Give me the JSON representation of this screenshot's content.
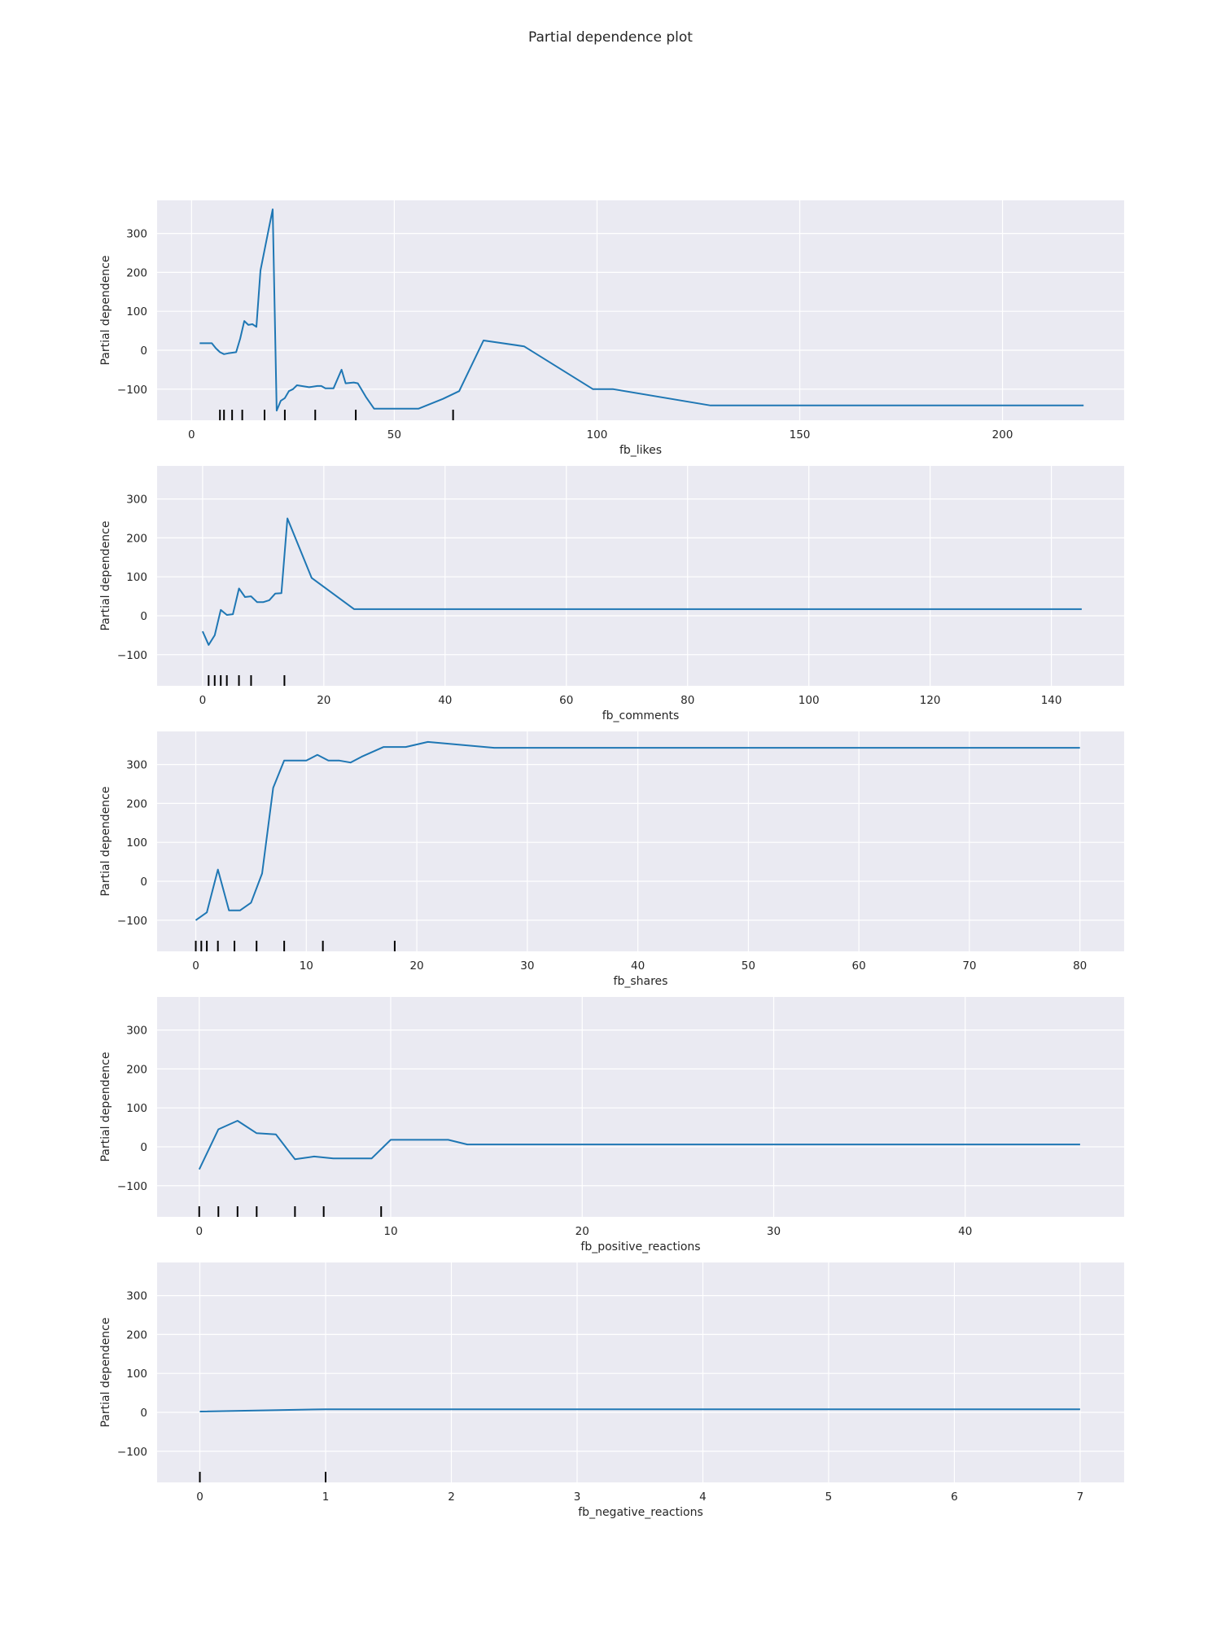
{
  "title": "Partial dependence plot",
  "colors": {
    "line": "#1f77b4",
    "panel_bg": "#eaeaf2",
    "grid": "#ffffff",
    "rug": "#000000",
    "text": "#262626"
  },
  "chart_data": [
    {
      "type": "line",
      "xlabel": "fb_likes",
      "ylabel": "Partial dependence",
      "xlim": [
        -8.5,
        230
      ],
      "ylim": [
        -180,
        385
      ],
      "xticks": [
        0,
        50,
        100,
        150,
        200
      ],
      "yticks": [
        -100,
        0,
        100,
        200,
        300
      ],
      "grid": true,
      "series": [
        {
          "x": [
            2,
            5,
            6,
            7,
            8,
            9,
            11,
            12,
            13,
            14,
            15,
            16,
            17,
            19,
            20,
            21,
            22,
            23,
            24,
            25,
            26,
            29,
            31,
            32,
            33,
            35,
            37,
            38,
            40,
            41,
            43,
            45,
            56,
            62,
            66,
            72,
            82,
            99,
            104,
            128,
            220
          ],
          "y": [
            18,
            18,
            5,
            -5,
            -10,
            -8,
            -5,
            30,
            75,
            65,
            67,
            60,
            205,
            310,
            362,
            -155,
            -130,
            -123,
            -105,
            -100,
            -90,
            -95,
            -92,
            -92,
            -98,
            -98,
            -50,
            -85,
            -83,
            -85,
            -120,
            -150,
            -150,
            -125,
            -105,
            25,
            10,
            -100,
            -100,
            -142,
            -142
          ]
        }
      ],
      "rug": [
        7,
        8,
        10,
        12.5,
        18,
        23,
        30.5,
        40.5,
        64.5
      ]
    },
    {
      "type": "line",
      "xlabel": "fb_comments",
      "ylabel": "Partial dependence",
      "xlim": [
        -7.5,
        152
      ],
      "ylim": [
        -180,
        385
      ],
      "xticks": [
        0,
        20,
        40,
        60,
        80,
        100,
        120,
        140
      ],
      "yticks": [
        -100,
        0,
        100,
        200,
        300
      ],
      "grid": true,
      "series": [
        {
          "x": [
            0,
            1,
            2,
            3,
            4,
            5,
            6,
            7,
            8,
            9,
            10,
            11,
            12,
            13,
            14,
            18,
            25,
            145
          ],
          "y": [
            -40,
            -75,
            -50,
            15,
            2,
            4,
            70,
            48,
            50,
            35,
            35,
            40,
            57,
            58,
            250,
            97,
            17,
            17
          ]
        }
      ],
      "rug": [
        1,
        2,
        3,
        4,
        6,
        8,
        13.5
      ]
    },
    {
      "type": "line",
      "xlabel": "fb_shares",
      "ylabel": "Partial dependence",
      "xlim": [
        -3.5,
        84
      ],
      "ylim": [
        -180,
        385
      ],
      "xticks": [
        0,
        10,
        20,
        30,
        40,
        50,
        60,
        70,
        80
      ],
      "yticks": [
        -100,
        0,
        100,
        200,
        300
      ],
      "grid": true,
      "series": [
        {
          "x": [
            0,
            1,
            2,
            3,
            4,
            5,
            6,
            7,
            8,
            9,
            10,
            11,
            12,
            13,
            14,
            15,
            17,
            19,
            21,
            27,
            80
          ],
          "y": [
            -100,
            -80,
            30,
            -75,
            -75,
            -55,
            20,
            240,
            310,
            310,
            310,
            325,
            310,
            310,
            305,
            320,
            345,
            345,
            358,
            343,
            343
          ]
        }
      ],
      "rug": [
        0,
        0.5,
        1,
        2,
        3.5,
        5.5,
        8,
        11.5,
        18
      ]
    },
    {
      "type": "line",
      "xlabel": "fb_positive_reactions",
      "ylabel": "Partial dependence",
      "xlim": [
        -2.2,
        48.3
      ],
      "ylim": [
        -180,
        385
      ],
      "xticks": [
        0,
        10,
        20,
        30,
        40
      ],
      "yticks": [
        -100,
        0,
        100,
        200,
        300
      ],
      "grid": true,
      "series": [
        {
          "x": [
            0,
            1,
            2,
            3,
            4,
            5,
            6,
            7,
            8,
            9,
            10,
            13,
            14,
            46
          ],
          "y": [
            -58,
            45,
            67,
            35,
            32,
            -32,
            -25,
            -30,
            -30,
            -30,
            18,
            18,
            6,
            6
          ]
        }
      ],
      "rug": [
        0,
        1,
        2,
        3,
        5,
        6.5,
        9.5
      ]
    },
    {
      "type": "line",
      "xlabel": "fb_negative_reactions",
      "ylabel": "Partial dependence",
      "xlim": [
        -0.34,
        7.35
      ],
      "ylim": [
        -180,
        385
      ],
      "xticks": [
        0,
        1,
        2,
        3,
        4,
        5,
        6,
        7
      ],
      "yticks": [
        -100,
        0,
        100,
        200,
        300
      ],
      "grid": true,
      "series": [
        {
          "x": [
            0,
            1,
            7
          ],
          "y": [
            2,
            8,
            8
          ]
        }
      ],
      "rug": [
        0,
        1
      ]
    }
  ]
}
